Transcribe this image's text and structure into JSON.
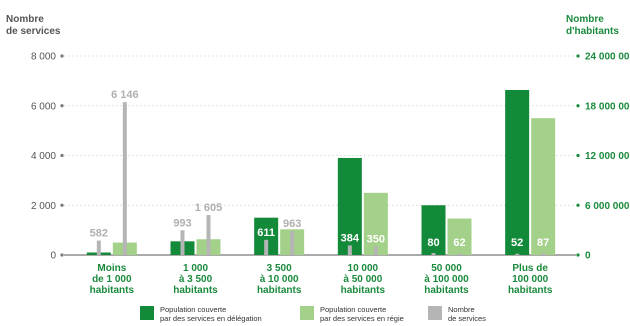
{
  "left_axis_title": [
    "Nombre",
    "de services"
  ],
  "right_axis_title": [
    "Nombre",
    "d'habitants"
  ],
  "legend": {
    "delegation": [
      "Population couverte",
      "par des services en délégation"
    ],
    "regie": [
      "Population couverte",
      "par des services en régie"
    ],
    "services": [
      "Nombre",
      "de services"
    ]
  },
  "colors": {
    "delegation": "#13893a",
    "regie": "#a4d18a",
    "services": "#b5b5b5",
    "left_axis_text": "#555555",
    "right_axis_text": "#1a8a3c",
    "category_text": "#1a8a3c"
  },
  "chart_data": {
    "type": "bar",
    "categories": [
      [
        "Moins",
        "de 1 000",
        "habitants"
      ],
      [
        "1 000",
        "à 3 500",
        "habitants"
      ],
      [
        "3 500",
        "à 10 000",
        "habitants"
      ],
      [
        "10 000",
        "à 50 000",
        "habitants"
      ],
      [
        "50 000",
        "à 100 000",
        "habitants"
      ],
      [
        "Plus de",
        "100 000",
        "habitants"
      ]
    ],
    "left_axis": {
      "ylim": [
        0,
        8000
      ],
      "ticks": [
        0,
        2000,
        4000,
        6000,
        8000
      ],
      "tick_labels": [
        "0",
        "2 000",
        "4 000",
        "6 000",
        "8 000"
      ]
    },
    "right_axis": {
      "ylim": [
        0,
        24000000
      ],
      "ticks": [
        0,
        6000000,
        12000000,
        18000000,
        24000000
      ],
      "tick_labels": [
        "0",
        "6 000 000",
        "12 000 000",
        "18 000 000",
        "24 000 000"
      ]
    },
    "series": [
      {
        "key": "delegation",
        "axis": "right",
        "values": [
          300000,
          1650000,
          4500000,
          11700000,
          6000000,
          19900000
        ]
      },
      {
        "key": "regie",
        "axis": "right",
        "values": [
          1500000,
          1900000,
          3100000,
          7500000,
          4400000,
          16500000
        ]
      },
      {
        "key": "services",
        "axis": "left",
        "values": [
          582,
          993,
          611,
          384,
          80,
          52
        ],
        "overlay_labels": [
          "6 146",
          "1 605",
          "963",
          "350",
          "62",
          "87"
        ],
        "overlay_values": [
          6146,
          1605,
          963,
          350,
          62,
          87
        ]
      }
    ],
    "data_labels": [
      [
        "582",
        "6 146"
      ],
      [
        "993",
        "1 605"
      ],
      [
        "611",
        "963"
      ],
      [
        "384",
        "350"
      ],
      [
        "80",
        "62"
      ],
      [
        "52",
        "87"
      ]
    ],
    "grid": true,
    "legend_position": "bottom"
  }
}
